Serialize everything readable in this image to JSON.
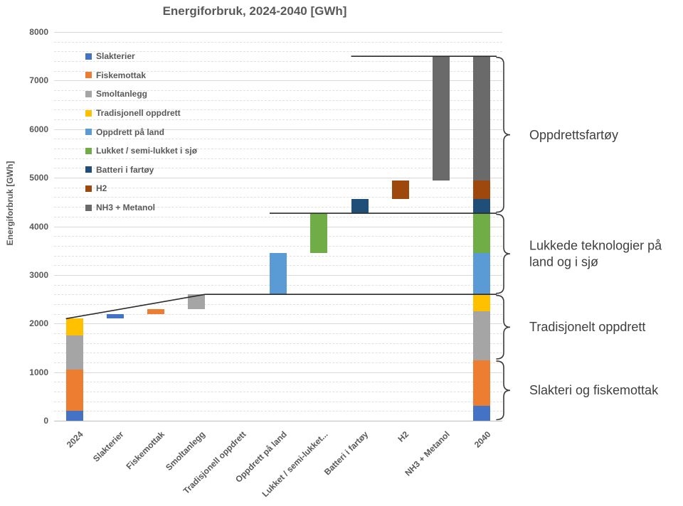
{
  "chart_data": {
    "type": "bar",
    "subtype": "stacked-waterfall",
    "title": "Energiforbruk, 2024-2040 [GWh]",
    "ylabel": "Energiforbruk [GWh]",
    "xlabel": "",
    "ylim": [
      0,
      8000
    ],
    "y_major_step": 1000,
    "y_minor_step": 200,
    "grid": "major-solid, minor-dashed",
    "legend_position": "inside-top-left",
    "categories": [
      "2024",
      "Slakterier",
      "Fiskemottak",
      "Smoltanlegg",
      "Tradisjonell oppdrett",
      "Oppdrett på land",
      "Lukket / semi-lukket...",
      "Batteri i fartøy",
      "H2",
      "NH3 + Metanol",
      "2040"
    ],
    "series": [
      {
        "name": "Slakterier",
        "color": "#4472C4"
      },
      {
        "name": "Fiskemottak",
        "color": "#ED7D31"
      },
      {
        "name": "Smoltanlegg",
        "color": "#A5A5A5"
      },
      {
        "name": "Tradisjonell oppdrett",
        "color": "#FFC000"
      },
      {
        "name": "Oppdrett på land",
        "color": "#5B9BD5"
      },
      {
        "name": "Lukket / semi-lukket i sjø",
        "color": "#70AD47"
      },
      {
        "name": "Batteri i fartøy",
        "color": "#1F4E79"
      },
      {
        "name": "H2",
        "color": "#9E480E"
      },
      {
        "name": "NH3 + Metanol",
        "color": "#6A6A6A"
      }
    ],
    "bars": [
      {
        "category": "2024",
        "segments": [
          {
            "series": "Slakterier",
            "from": 0,
            "to": 200
          },
          {
            "series": "Fiskemottak",
            "from": 200,
            "to": 1050
          },
          {
            "series": "Smoltanlegg",
            "from": 1050,
            "to": 1750
          },
          {
            "series": "Tradisjonell oppdrett",
            "from": 1750,
            "to": 2100
          }
        ]
      },
      {
        "category": "Slakterier",
        "segments": [
          {
            "series": "Slakterier",
            "from": 2100,
            "to": 2200
          }
        ]
      },
      {
        "category": "Fiskemottak",
        "segments": [
          {
            "series": "Fiskemottak",
            "from": 2200,
            "to": 2300
          }
        ]
      },
      {
        "category": "Smoltanlegg",
        "segments": [
          {
            "series": "Smoltanlegg",
            "from": 2300,
            "to": 2600
          }
        ]
      },
      {
        "category": "Tradisjonell oppdrett",
        "segments": []
      },
      {
        "category": "Oppdrett på land",
        "segments": [
          {
            "series": "Oppdrett på land",
            "from": 2600,
            "to": 3450
          }
        ]
      },
      {
        "category": "Lukket / semi-lukket...",
        "segments": [
          {
            "series": "Lukket / semi-lukket i sjø",
            "from": 3450,
            "to": 4270
          }
        ]
      },
      {
        "category": "Batteri i fartøy",
        "segments": [
          {
            "series": "Batteri i fartøy",
            "from": 4270,
            "to": 4560
          }
        ]
      },
      {
        "category": "H2",
        "segments": [
          {
            "series": "H2",
            "from": 4560,
            "to": 4950
          }
        ]
      },
      {
        "category": "NH3 + Metanol",
        "segments": [
          {
            "series": "NH3 + Metanol",
            "from": 4950,
            "to": 7500
          }
        ]
      },
      {
        "category": "2040",
        "segments": [
          {
            "series": "Slakterier",
            "from": 0,
            "to": 300
          },
          {
            "series": "Fiskemottak",
            "from": 300,
            "to": 1250
          },
          {
            "series": "Smoltanlegg",
            "from": 1250,
            "to": 2250
          },
          {
            "series": "Tradisjonell oppdrett",
            "from": 2250,
            "to": 2600
          },
          {
            "series": "Oppdrett på land",
            "from": 2600,
            "to": 3450
          },
          {
            "series": "Lukket / semi-lukket i sjø",
            "from": 3450,
            "to": 4270
          },
          {
            "series": "Batteri i fartøy",
            "from": 4270,
            "to": 4560
          },
          {
            "series": "H2",
            "from": 4560,
            "to": 4950
          },
          {
            "series": "NH3 + Metanol",
            "from": 4950,
            "to": 7500
          }
        ]
      }
    ],
    "connector_lines": [
      {
        "from_cat": 0,
        "from_edge": "left",
        "from_value": 2100,
        "to_cat": 3,
        "to_edge": "right",
        "to_value": 2600
      },
      {
        "from_cat": 3,
        "from_edge": "right",
        "from_value": 2600,
        "to_cat": 10,
        "to_edge": "beyond",
        "to_value": 2600
      },
      {
        "from_cat": 5,
        "from_edge": "left",
        "from_value": 4270,
        "to_cat": 10,
        "to_edge": "beyond",
        "to_value": 4270
      },
      {
        "from_cat": 7,
        "from_edge": "left",
        "from_value": 7500,
        "to_cat": 10,
        "to_edge": "beyond",
        "to_value": 7500
      }
    ],
    "annotations": [
      {
        "label": "Oppdrettsfartøy",
        "from_value": 4270,
        "to_value": 7500
      },
      {
        "label": "Lukkede teknologier på land og i sjø",
        "from_value": 2600,
        "to_value": 4270
      },
      {
        "label": "Tradisjonelt oppdrett",
        "from_value": 1250,
        "to_value": 2600
      },
      {
        "label": "Slakteri og fiskemottak",
        "from_value": 0,
        "to_value": 1250
      }
    ],
    "line_color": "#2b2b2b",
    "bracket_color": "#3a3a3a"
  }
}
